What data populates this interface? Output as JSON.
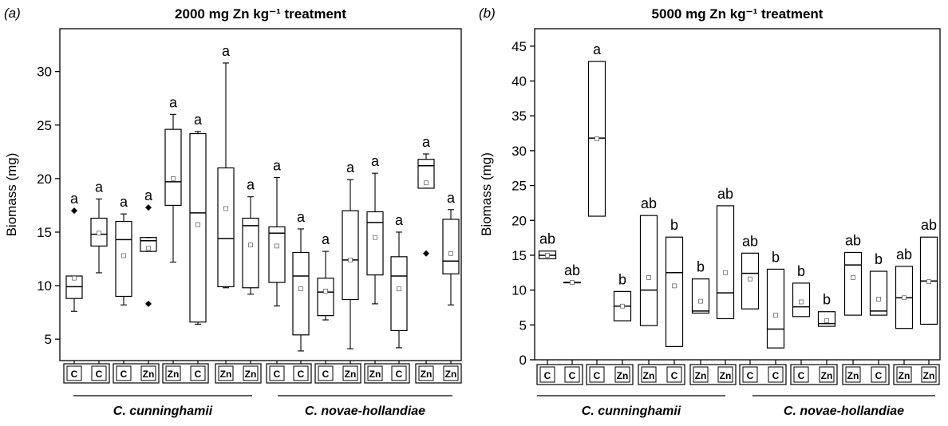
{
  "chart_data": [
    {
      "type": "box",
      "panel_label": "(a)",
      "title": "2000 mg Zn kg⁻¹ treatment",
      "ylabel": "Biomass (mg)",
      "ylim": [
        3,
        34
      ],
      "yticks": [
        5,
        10,
        15,
        20,
        25,
        30
      ],
      "groups": [
        {
          "name": "C. cunninghamii",
          "pairs": [
            [
              "C",
              "C"
            ],
            [
              "C",
              "Zn"
            ],
            [
              "Zn",
              "C"
            ],
            [
              "Zn",
              "Zn"
            ]
          ]
        },
        {
          "name": "C. novae-hollandiae",
          "pairs": [
            [
              "C",
              "C"
            ],
            [
              "C",
              "Zn"
            ],
            [
              "Zn",
              "C"
            ],
            [
              "Zn",
              "Zn"
            ]
          ]
        }
      ],
      "boxes": [
        {
          "category": "C",
          "q1": 8.8,
          "median": 9.9,
          "q3": 10.9,
          "mean": 10.7,
          "whisker_low": 7.6,
          "whisker_high": 10.9,
          "outliers": [
            17.0
          ],
          "letter": "a"
        },
        {
          "category": "C",
          "q1": 13.7,
          "median": 14.8,
          "q3": 16.3,
          "mean": 14.9,
          "whisker_low": 11.2,
          "whisker_high": 18.1,
          "outliers": [],
          "letter": "a"
        },
        {
          "category": "C",
          "q1": 9.0,
          "median": 14.3,
          "q3": 16.0,
          "mean": 12.8,
          "whisker_low": 8.2,
          "whisker_high": 16.7,
          "outliers": [],
          "letter": "a"
        },
        {
          "category": "Zn",
          "q1": 13.2,
          "median": 14.2,
          "q3": 14.5,
          "mean": 13.5,
          "whisker_low": 13.2,
          "whisker_high": 14.5,
          "outliers": [
            17.3,
            8.3
          ],
          "letter": "a"
        },
        {
          "category": "Zn",
          "q1": 17.5,
          "median": 19.7,
          "q3": 24.6,
          "mean": 20.0,
          "whisker_low": 12.2,
          "whisker_high": 26.0,
          "outliers": [],
          "letter": "a"
        },
        {
          "category": "C",
          "q1": 6.6,
          "median": 16.8,
          "q3": 24.2,
          "mean": 15.7,
          "whisker_low": 6.4,
          "whisker_high": 24.4,
          "outliers": [],
          "letter": "a"
        },
        {
          "category": "Zn",
          "q1": 9.9,
          "median": 14.4,
          "q3": 21.0,
          "mean": 17.2,
          "whisker_low": 9.8,
          "whisker_high": 30.8,
          "outliers": [],
          "letter": "a"
        },
        {
          "category": "Zn",
          "q1": 9.8,
          "median": 15.6,
          "q3": 16.3,
          "mean": 13.8,
          "whisker_low": 9.2,
          "whisker_high": 18.3,
          "outliers": [],
          "letter": "a"
        },
        {
          "category": "C",
          "q1": 10.3,
          "median": 14.9,
          "q3": 15.5,
          "mean": 13.7,
          "whisker_low": 8.1,
          "whisker_high": 20.1,
          "outliers": [],
          "letter": "a"
        },
        {
          "category": "C",
          "q1": 5.4,
          "median": 10.9,
          "q3": 13.1,
          "mean": 9.7,
          "whisker_low": 3.9,
          "whisker_high": 15.3,
          "outliers": [],
          "letter": "a"
        },
        {
          "category": "C",
          "q1": 7.2,
          "median": 9.4,
          "q3": 10.7,
          "mean": 9.5,
          "whisker_low": 6.8,
          "whisker_high": 13.2,
          "outliers": [],
          "letter": "a"
        },
        {
          "category": "Zn",
          "q1": 8.7,
          "median": 12.4,
          "q3": 17.0,
          "mean": 12.4,
          "whisker_low": 4.1,
          "whisker_high": 19.9,
          "outliers": [],
          "letter": "a"
        },
        {
          "category": "Zn",
          "q1": 11.0,
          "median": 15.9,
          "q3": 16.9,
          "mean": 14.5,
          "whisker_low": 8.3,
          "whisker_high": 20.5,
          "outliers": [],
          "letter": "a"
        },
        {
          "category": "C",
          "q1": 5.8,
          "median": 10.9,
          "q3": 12.7,
          "mean": 9.7,
          "whisker_low": 4.2,
          "whisker_high": 15.0,
          "outliers": [],
          "letter": "a"
        },
        {
          "category": "Zn",
          "q1": 19.1,
          "median": 21.2,
          "q3": 21.8,
          "mean": 19.6,
          "whisker_low": 19.1,
          "whisker_high": 22.3,
          "outliers": [
            13.0
          ],
          "letter": "a"
        },
        {
          "category": "Zn",
          "q1": 11.1,
          "median": 12.3,
          "q3": 16.2,
          "mean": 13.0,
          "whisker_low": 8.2,
          "whisker_high": 17.1,
          "outliers": [],
          "letter": "a"
        }
      ]
    },
    {
      "type": "box",
      "panel_label": "(b)",
      "title": "5000 mg Zn kg⁻¹ treatment",
      "ylabel": "Biomass (mg)",
      "ylim": [
        0,
        47.5
      ],
      "yticks": [
        0,
        5,
        10,
        15,
        20,
        25,
        30,
        35,
        40,
        45
      ],
      "groups": [
        {
          "name": "C. cunninghamii",
          "pairs": [
            [
              "C",
              "C"
            ],
            [
              "C",
              "Zn"
            ],
            [
              "Zn",
              "C"
            ],
            [
              "Zn",
              "Zn"
            ]
          ]
        },
        {
          "name": "C. novae-hollandiae",
          "pairs": [
            [
              "C",
              "C"
            ],
            [
              "C",
              "Zn"
            ],
            [
              "Zn",
              "C"
            ],
            [
              "Zn",
              "Zn"
            ]
          ]
        }
      ],
      "boxes": [
        {
          "category": "C",
          "q1": 14.5,
          "median": 15.0,
          "q3": 15.6,
          "mean": 15.0,
          "letter": "ab"
        },
        {
          "category": "C",
          "q1": 11.1,
          "median": 11.1,
          "q3": 11.1,
          "mean": 11.1,
          "letter": "ab"
        },
        {
          "category": "C",
          "q1": 20.6,
          "median": 31.8,
          "q3": 42.8,
          "mean": 31.7,
          "letter": "a"
        },
        {
          "category": "Zn",
          "q1": 5.6,
          "median": 7.7,
          "q3": 9.8,
          "mean": 7.7,
          "letter": "b"
        },
        {
          "category": "Zn",
          "q1": 4.9,
          "median": 10.0,
          "q3": 20.7,
          "mean": 11.8,
          "letter": "ab"
        },
        {
          "category": "C",
          "q1": 1.9,
          "median": 12.5,
          "q3": 17.6,
          "mean": 10.6,
          "letter": "b"
        },
        {
          "category": "Zn",
          "q1": 6.7,
          "median": 7.0,
          "q3": 11.6,
          "mean": 8.4,
          "letter": "b"
        },
        {
          "category": "Zn",
          "q1": 5.9,
          "median": 9.6,
          "q3": 22.1,
          "mean": 12.5,
          "letter": "ab"
        },
        {
          "category": "C",
          "q1": 7.3,
          "median": 12.4,
          "q3": 15.3,
          "mean": 11.6,
          "letter": "ab"
        },
        {
          "category": "C",
          "q1": 1.7,
          "median": 4.4,
          "q3": 13.0,
          "mean": 6.4,
          "letter": "b"
        },
        {
          "category": "C",
          "q1": 6.2,
          "median": 7.6,
          "q3": 11.0,
          "mean": 8.3,
          "letter": "b"
        },
        {
          "category": "Zn",
          "q1": 4.8,
          "median": 5.2,
          "q3": 6.9,
          "mean": 5.6,
          "letter": "b"
        },
        {
          "category": "Zn",
          "q1": 6.4,
          "median": 13.6,
          "q3": 15.4,
          "mean": 11.8,
          "letter": "ab"
        },
        {
          "category": "C",
          "q1": 6.4,
          "median": 7.0,
          "q3": 12.7,
          "mean": 8.7,
          "letter": "b"
        },
        {
          "category": "Zn",
          "q1": 4.5,
          "median": 8.9,
          "q3": 13.4,
          "mean": 8.9,
          "letter": "ab"
        },
        {
          "category": "Zn",
          "q1": 5.1,
          "median": 11.3,
          "q3": 17.6,
          "mean": 11.2,
          "letter": "ab"
        }
      ]
    }
  ]
}
